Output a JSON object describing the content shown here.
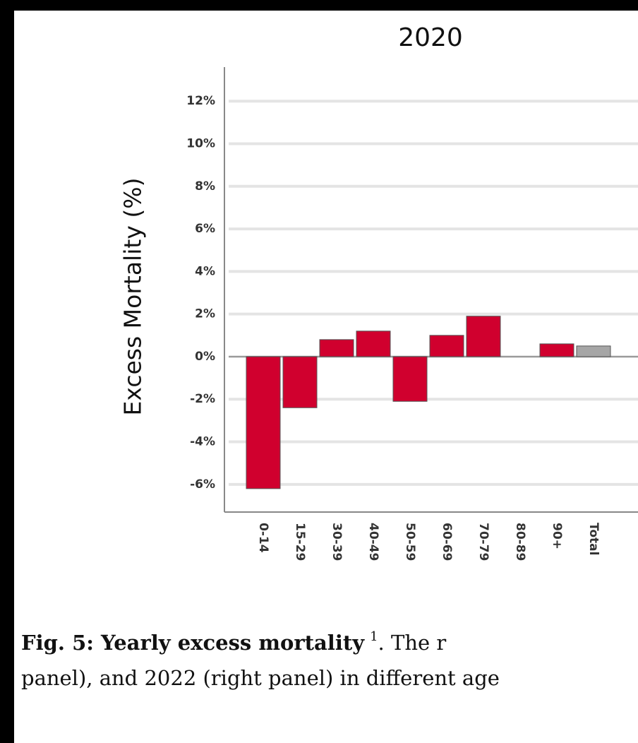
{
  "chart_data": {
    "type": "bar",
    "title": "2020",
    "y_label": "Excess Mortality (%)",
    "categories": [
      "0-14",
      "15-29",
      "30-39",
      "40-49",
      "50-59",
      "60-69",
      "70-79",
      "80-89",
      "90+",
      "Total"
    ],
    "values": [
      -6.2,
      -2.4,
      0.8,
      1.2,
      -2.1,
      1.0,
      1.9,
      0,
      0.6,
      0.5
    ],
    "colors": [
      "#d0002e",
      "#d0002e",
      "#d0002e",
      "#d0002e",
      "#d0002e",
      "#d0002e",
      "#d0002e",
      "#d0002e",
      "#d0002e",
      "#a6a6a6"
    ],
    "ylim": [
      -7.3,
      13.6
    ],
    "yticks": [
      {
        "value": -6,
        "label": "-6%"
      },
      {
        "value": -4,
        "label": "-4%"
      },
      {
        "value": -2,
        "label": "-2%"
      },
      {
        "value": 0,
        "label": "0%"
      },
      {
        "value": 2,
        "label": "2%"
      },
      {
        "value": 4,
        "label": "4%"
      },
      {
        "value": 6,
        "label": "6%"
      },
      {
        "value": 8,
        "label": "8%"
      },
      {
        "value": 10,
        "label": "10%"
      },
      {
        "value": 12,
        "label": "12%"
      }
    ],
    "grid": true
  },
  "caption": {
    "bold": "Fig. 5: Yearly excess mortality",
    "sup": "1",
    "rest": ". The r",
    "line2": "panel), and 2022 (right panel) in different age"
  }
}
